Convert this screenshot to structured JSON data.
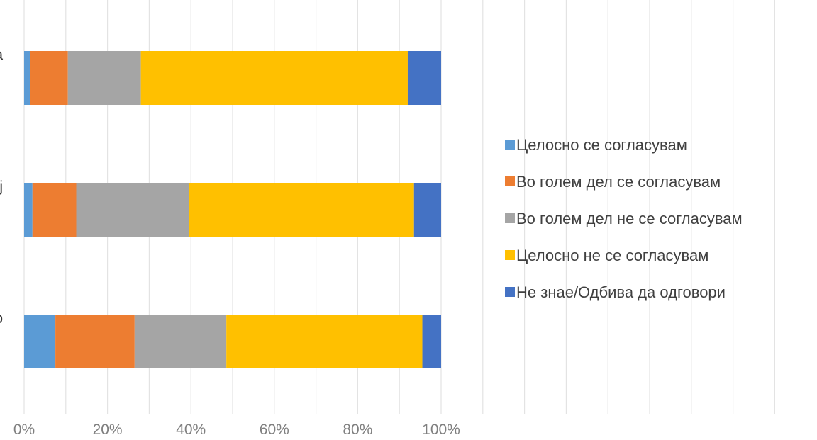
{
  "chart_data": {
    "type": "bar",
    "orientation": "horizontal",
    "stacked": "percent",
    "categories": [
      "a",
      "j",
      "o"
    ],
    "series": [
      {
        "name": "Целосно се согласувам",
        "color": "#5b9bd5",
        "values": [
          1.5,
          2,
          7.5
        ]
      },
      {
        "name": "Во голем дел се согласувам",
        "color": "#ed7d31",
        "values": [
          9,
          10.5,
          19
        ]
      },
      {
        "name": "Во голем дел не се согласувам",
        "color": "#a5a5a5",
        "values": [
          17.5,
          27,
          22
        ]
      },
      {
        "name": "Целосно не се согласувам",
        "color": "#ffc000",
        "values": [
          64,
          54,
          47
        ]
      },
      {
        "name": "Не знае/Одбива да одговори",
        "color": "#4472c4",
        "values": [
          8,
          6.5,
          4.5
        ]
      }
    ],
    "xticks": [
      "0%",
      "20%",
      "40%",
      "60%",
      "80%",
      "100%"
    ],
    "xlim": [
      0,
      100
    ],
    "grid": "vertical",
    "legend": "right"
  }
}
